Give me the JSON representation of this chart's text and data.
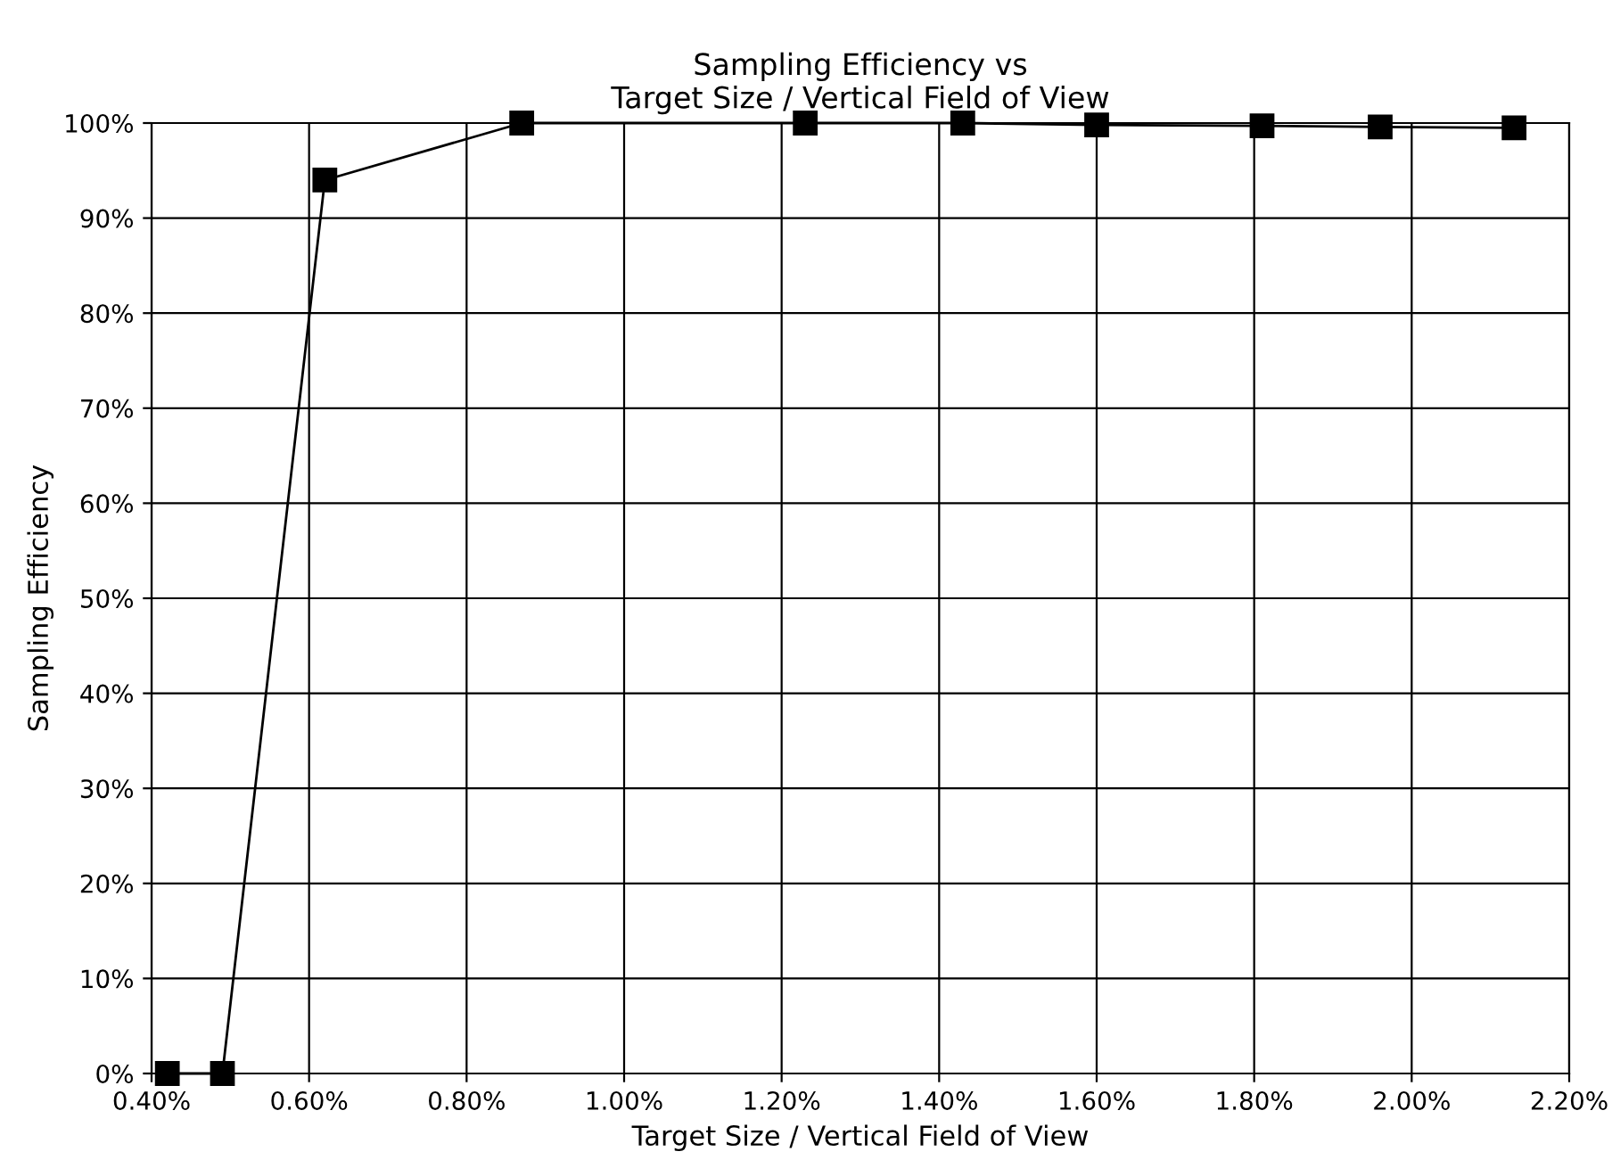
{
  "chart_data": {
    "type": "line",
    "title": "Sampling Efficiency vs\nTarget Size / Vertical Field of View",
    "xlabel": "Target Size / Vertical Field of View",
    "ylabel": "Sampling Efficiency",
    "x": [
      0.42,
      0.49,
      0.62,
      0.87,
      1.23,
      1.43,
      1.6,
      1.81,
      1.96,
      2.13
    ],
    "series": [
      {
        "color": "#000000",
        "values": [
          0,
          0,
          94,
          100,
          100,
          100,
          99.8,
          99.7,
          99.6,
          99.5
        ]
      }
    ],
    "xlim": [
      0.4,
      2.2
    ],
    "xticks": [
      {
        "value": 0.4,
        "label": "0.40%"
      },
      {
        "value": 0.6,
        "label": "0.60%"
      },
      {
        "value": 0.8,
        "label": "0.80%"
      },
      {
        "value": 1.0,
        "label": "1.00%"
      },
      {
        "value": 1.2,
        "label": "1.20%"
      },
      {
        "value": 1.4,
        "label": "1.40%"
      },
      {
        "value": 1.6,
        "label": "1.60%"
      },
      {
        "value": 1.8,
        "label": "1.80%"
      },
      {
        "value": 2.0,
        "label": "2.00%"
      },
      {
        "value": 2.2,
        "label": "2.20%"
      }
    ],
    "ylim": [
      0,
      100
    ],
    "yticks": [
      {
        "value": 0,
        "label": "0%"
      },
      {
        "value": 10,
        "label": "10%"
      },
      {
        "value": 20,
        "label": "20%"
      },
      {
        "value": 30,
        "label": "30%"
      },
      {
        "value": 40,
        "label": "40%"
      },
      {
        "value": 50,
        "label": "50%"
      },
      {
        "value": 60,
        "label": "60%"
      },
      {
        "value": 70,
        "label": "70%"
      },
      {
        "value": 80,
        "label": "80%"
      },
      {
        "value": 90,
        "label": "90%"
      },
      {
        "value": 100,
        "label": "100%"
      }
    ],
    "grid": true,
    "marker": "square",
    "line_style": "solid"
  }
}
